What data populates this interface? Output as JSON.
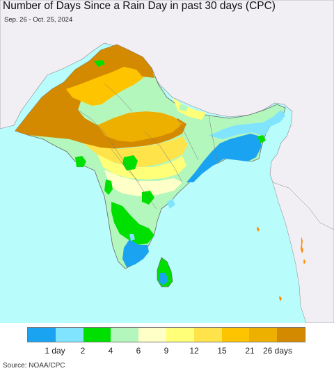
{
  "title": "Number of Days Since a Rain Day in past 30 days (CPC)",
  "date_range": "Sep. 26 - Oct. 25, 2024",
  "source": "Source: NOAA/CPC",
  "colors": {
    "ocean": "#b8fcfc",
    "land_neighbor": "#f1eef4",
    "border": "#555555"
  },
  "legend": {
    "colors": [
      "#1aa3f0",
      "#80e4ff",
      "#00e000",
      "#b4f7bc",
      "#ffffc8",
      "#ffff78",
      "#ffe34a",
      "#ffc400",
      "#eeb000",
      "#d48a00"
    ],
    "tick_labels": [
      "1 day",
      "2",
      "4",
      "6",
      "9",
      "12",
      "15",
      "21",
      "26 days"
    ]
  }
}
